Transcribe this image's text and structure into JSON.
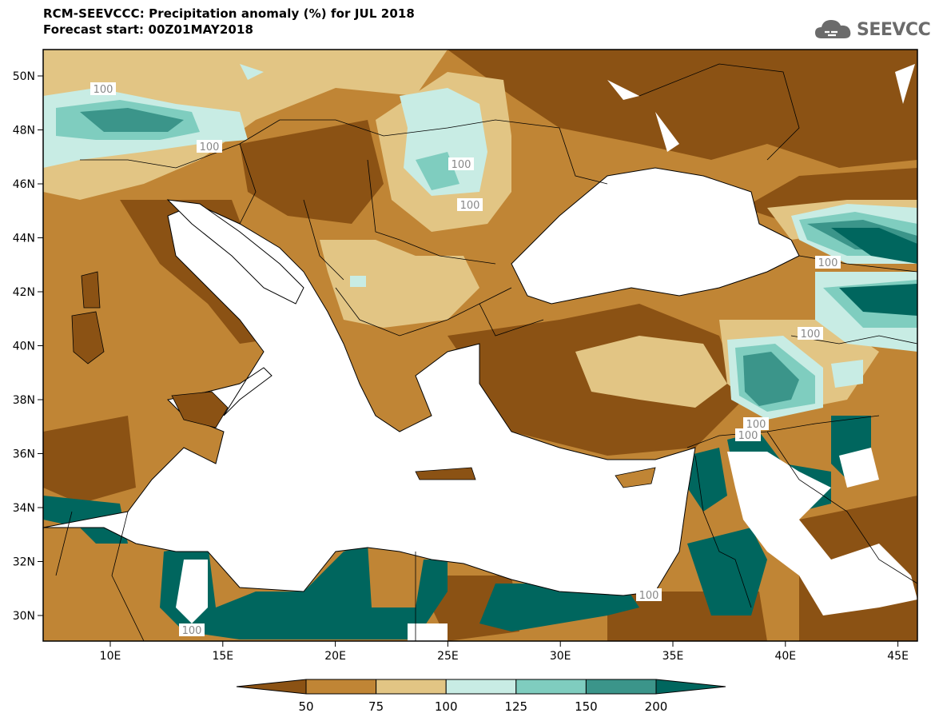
{
  "header": {
    "title": "RCM-SEEVCCC: Precipitation anomaly (%) for JUL 2018",
    "subtitle": "Forecast start: 00Z01MAY2018"
  },
  "logo": {
    "text": "SEEVCCC",
    "icon": "cloud-icon"
  },
  "map": {
    "lon_labels": [
      "10E",
      "15E",
      "20E",
      "25E",
      "30E",
      "35E",
      "40E",
      "45E"
    ],
    "lat_labels": [
      "50N",
      "48N",
      "46N",
      "44N",
      "42N",
      "40N",
      "38N",
      "36N",
      "34N",
      "32N",
      "30N"
    ],
    "contour_labels": [
      "100",
      "100",
      "100",
      "100",
      "100",
      "100",
      "100",
      "100",
      "100",
      "100",
      "100"
    ]
  },
  "legend": {
    "ticks": [
      "50",
      "75",
      "100",
      "125",
      "150",
      "200"
    ],
    "colors": [
      "#8b5214",
      "#c08535",
      "#e2c584",
      "#c8ece4",
      "#7fcdbf",
      "#3b958a",
      "#00665e"
    ]
  }
}
